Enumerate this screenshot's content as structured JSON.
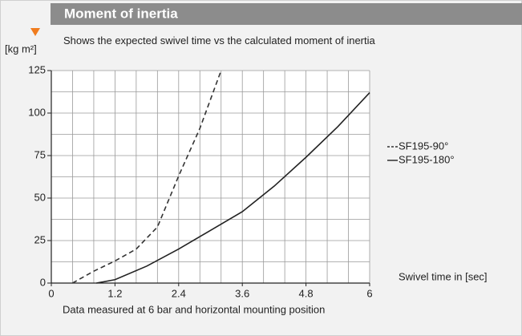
{
  "chart_data": {
    "type": "line",
    "title": "Moment of inertia",
    "subtitle": "Shows the expected swivel time vs the calculated moment of inertia",
    "y_label": "[kg m²]",
    "x_label": "Swivel time in [sec]",
    "note": "Data measured at 6 bar and horizontal mounting position",
    "xlim": [
      0,
      6
    ],
    "ylim": [
      0,
      125
    ],
    "xticks": [
      0,
      1.2,
      2.4,
      3.6,
      4.8,
      6
    ],
    "yticks": [
      0,
      25,
      50,
      75,
      100,
      125
    ],
    "xgrid": [
      0,
      0.4,
      0.8,
      1.2,
      1.6,
      2.0,
      2.4,
      2.8,
      3.2,
      3.6,
      4.0,
      4.4,
      4.8,
      5.2,
      5.6,
      6.0
    ],
    "ygrid": [
      0,
      12.5,
      25,
      37.5,
      50,
      62.5,
      75,
      87.5,
      100,
      112.5,
      125
    ],
    "grid": true,
    "series": [
      {
        "name": "SF195-90°",
        "color": "#333333",
        "dash": true,
        "x": [
          0.4,
          0.8,
          1.2,
          1.6,
          2.0,
          2.4,
          2.8,
          3.2
        ],
        "values": [
          0,
          7,
          13,
          20,
          33,
          63,
          91,
          125
        ]
      },
      {
        "name": "SF195-180°",
        "color": "#222222",
        "dash": false,
        "x": [
          0.85,
          1.2,
          1.8,
          2.4,
          3.0,
          3.6,
          4.2,
          4.8,
          5.4,
          6.0
        ],
        "values": [
          0,
          2,
          10,
          20,
          31,
          42,
          57,
          74,
          92,
          112
        ]
      }
    ]
  }
}
